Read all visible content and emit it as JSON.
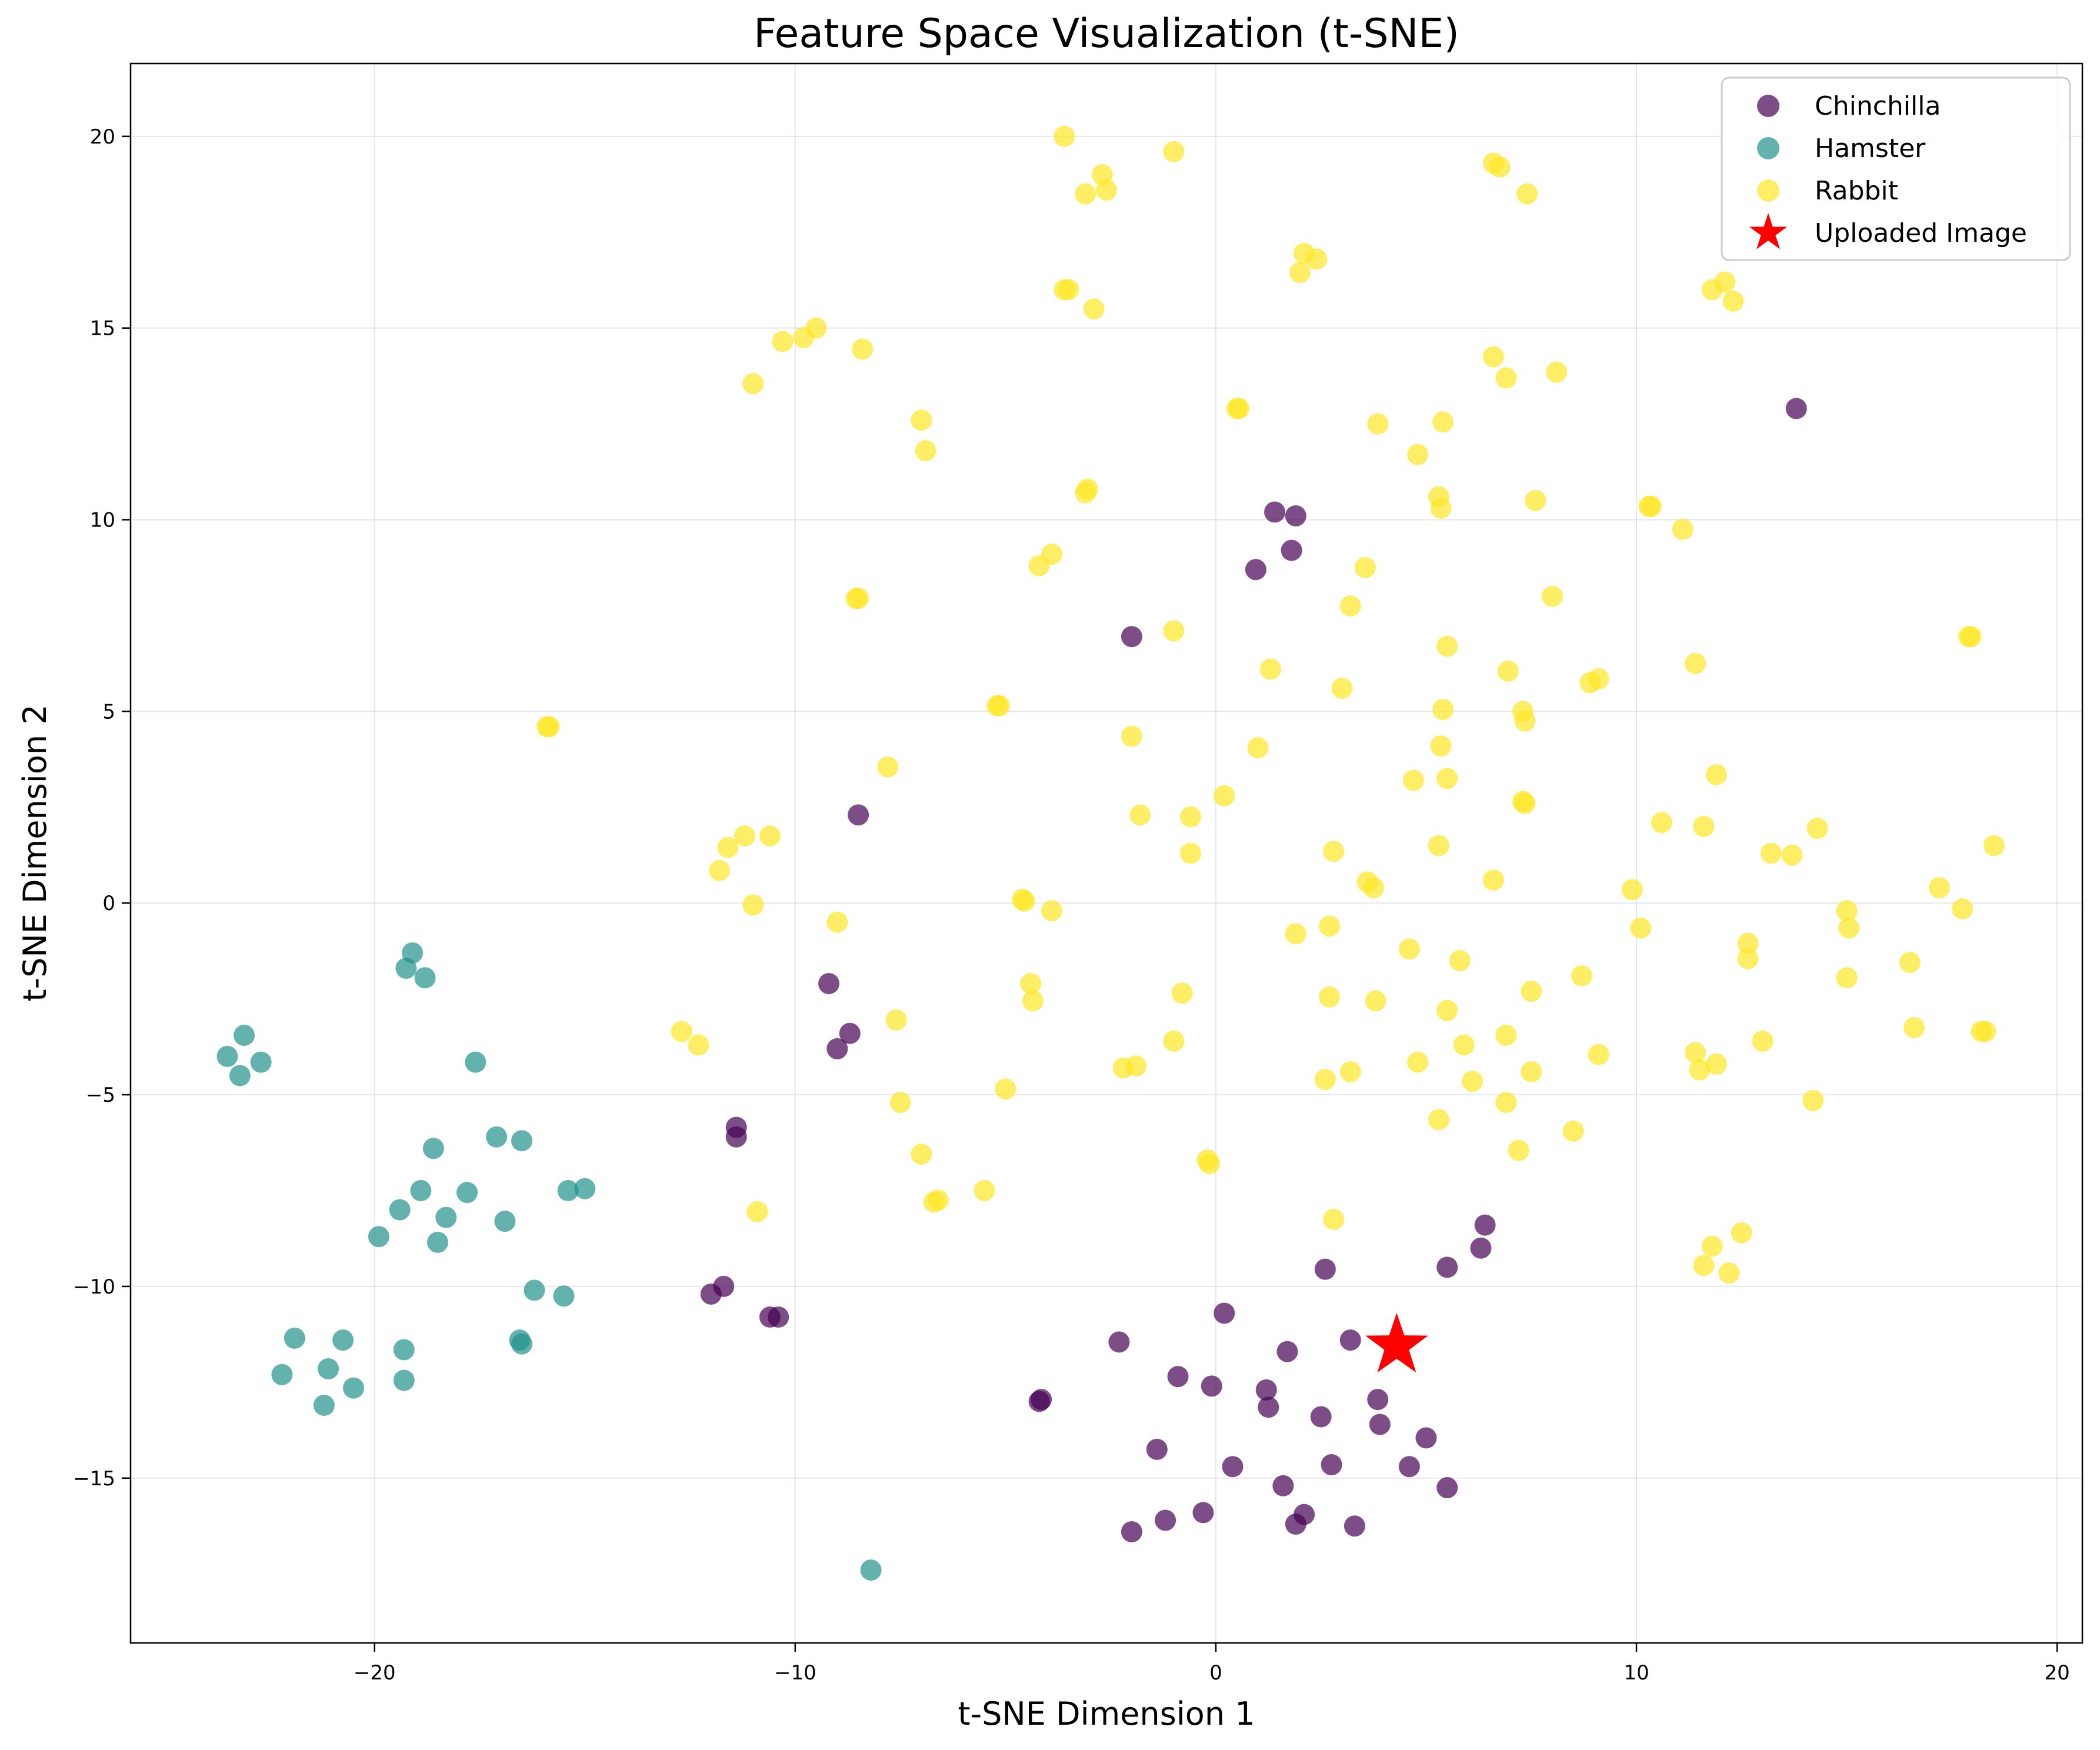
{
  "chart_data": {
    "type": "scatter",
    "title": "Feature Space Visualization (t-SNE)",
    "xlabel": "t-SNE Dimension 1",
    "ylabel": "t-SNE Dimension 2",
    "xlim": [
      -25.8,
      20.6
    ],
    "ylim": [
      -19.3,
      21.9
    ],
    "xticks": [
      -20,
      -10,
      0,
      10,
      20
    ],
    "yticks": [
      -15,
      -10,
      -5,
      0,
      5,
      10,
      15,
      20
    ],
    "xtick_labels": [
      "−20",
      "−10",
      "0",
      "10",
      "20"
    ],
    "ytick_labels": [
      "−15",
      "−10",
      "−5",
      "0",
      "5",
      "10",
      "15",
      "20"
    ],
    "grid": true,
    "legend_position": "top-right",
    "series": [
      {
        "name": "Chinchilla",
        "color": "#440154",
        "marker": "circle",
        "points": [
          [
            13.8,
            12.9
          ],
          [
            1.4,
            10.2
          ],
          [
            1.9,
            10.1
          ],
          [
            1.8,
            9.2
          ],
          [
            0.95,
            8.7
          ],
          [
            -2.0,
            6.95
          ],
          [
            -8.5,
            2.3
          ],
          [
            -9.2,
            -2.1
          ],
          [
            -8.7,
            -3.4
          ],
          [
            -9.0,
            -3.8
          ],
          [
            -11.4,
            -5.85
          ],
          [
            -11.4,
            -6.1
          ],
          [
            -12.0,
            -10.2
          ],
          [
            -11.7,
            -10.0
          ],
          [
            -10.6,
            -10.8
          ],
          [
            -10.4,
            -10.8
          ],
          [
            -4.2,
            -13.0
          ],
          [
            -4.15,
            -12.95
          ],
          [
            2.6,
            -9.55
          ],
          [
            6.4,
            -8.4
          ],
          [
            6.3,
            -9.0
          ],
          [
            5.5,
            -9.5
          ],
          [
            0.2,
            -10.7
          ],
          [
            3.2,
            -11.4
          ],
          [
            -2.3,
            -11.45
          ],
          [
            1.7,
            -11.7
          ],
          [
            -0.9,
            -12.35
          ],
          [
            -0.1,
            -12.6
          ],
          [
            1.2,
            -12.7
          ],
          [
            1.25,
            -13.15
          ],
          [
            3.85,
            -12.95
          ],
          [
            2.5,
            -13.4
          ],
          [
            3.9,
            -13.6
          ],
          [
            5.0,
            -13.95
          ],
          [
            -1.4,
            -14.25
          ],
          [
            0.4,
            -14.7
          ],
          [
            2.75,
            -14.65
          ],
          [
            4.6,
            -14.7
          ],
          [
            1.6,
            -15.2
          ],
          [
            5.5,
            -15.25
          ],
          [
            -0.3,
            -15.9
          ],
          [
            -1.2,
            -16.1
          ],
          [
            2.1,
            -15.95
          ],
          [
            1.9,
            -16.2
          ],
          [
            3.3,
            -16.25
          ],
          [
            -2.0,
            -16.4
          ]
        ]
      },
      {
        "name": "Hamster",
        "color": "#21918c",
        "marker": "circle",
        "points": [
          [
            -19.1,
            -1.3
          ],
          [
            -19.25,
            -1.7
          ],
          [
            -18.8,
            -1.95
          ],
          [
            -17.6,
            -4.15
          ],
          [
            -23.1,
            -3.45
          ],
          [
            -23.5,
            -4.0
          ],
          [
            -22.7,
            -4.15
          ],
          [
            -23.2,
            -4.5
          ],
          [
            -17.1,
            -6.1
          ],
          [
            -16.5,
            -6.2
          ],
          [
            -18.6,
            -6.4
          ],
          [
            -18.9,
            -7.5
          ],
          [
            -17.8,
            -7.55
          ],
          [
            -19.4,
            -8.0
          ],
          [
            -18.3,
            -8.2
          ],
          [
            -16.9,
            -8.3
          ],
          [
            -15.4,
            -7.5
          ],
          [
            -15.0,
            -7.45
          ],
          [
            -18.5,
            -8.85
          ],
          [
            -19.9,
            -8.7
          ],
          [
            -16.2,
            -10.1
          ],
          [
            -15.5,
            -10.25
          ],
          [
            -21.9,
            -11.35
          ],
          [
            -20.75,
            -11.4
          ],
          [
            -19.3,
            -11.65
          ],
          [
            -16.55,
            -11.4
          ],
          [
            -16.5,
            -11.5
          ],
          [
            -22.2,
            -12.3
          ],
          [
            -21.1,
            -12.15
          ],
          [
            -19.3,
            -12.45
          ],
          [
            -20.5,
            -12.65
          ],
          [
            -21.2,
            -13.1
          ],
          [
            -8.2,
            -17.4
          ]
        ]
      },
      {
        "name": "Rabbit",
        "color": "#fde725",
        "marker": "circle",
        "points": [
          [
            -3.6,
            20.0
          ],
          [
            -1.0,
            19.6
          ],
          [
            -2.7,
            19.0
          ],
          [
            -3.1,
            18.5
          ],
          [
            -2.6,
            18.6
          ],
          [
            6.6,
            19.3
          ],
          [
            6.75,
            19.2
          ],
          [
            7.4,
            18.5
          ],
          [
            2.1,
            16.95
          ],
          [
            2.4,
            16.8
          ],
          [
            2.0,
            16.45
          ],
          [
            11.8,
            16.0
          ],
          [
            12.1,
            16.2
          ],
          [
            12.3,
            15.7
          ],
          [
            -3.6,
            16.0
          ],
          [
            -3.5,
            16.0
          ],
          [
            -2.9,
            15.5
          ],
          [
            -9.5,
            15.0
          ],
          [
            -9.8,
            14.75
          ],
          [
            -10.3,
            14.65
          ],
          [
            -8.4,
            14.45
          ],
          [
            -11.0,
            13.55
          ],
          [
            6.6,
            14.25
          ],
          [
            6.9,
            13.7
          ],
          [
            8.1,
            13.85
          ],
          [
            0.5,
            12.9
          ],
          [
            0.55,
            12.9
          ],
          [
            -7.0,
            12.6
          ],
          [
            -6.9,
            11.8
          ],
          [
            3.85,
            12.5
          ],
          [
            5.4,
            12.55
          ],
          [
            4.8,
            11.7
          ],
          [
            -3.1,
            10.7
          ],
          [
            -3.05,
            10.8
          ],
          [
            5.3,
            10.6
          ],
          [
            5.35,
            10.3
          ],
          [
            7.6,
            10.5
          ],
          [
            10.3,
            10.35
          ],
          [
            10.35,
            10.35
          ],
          [
            11.1,
            9.75
          ],
          [
            -4.2,
            8.8
          ],
          [
            -3.9,
            9.1
          ],
          [
            3.55,
            8.75
          ],
          [
            -8.55,
            7.95
          ],
          [
            -8.5,
            7.95
          ],
          [
            3.2,
            7.75
          ],
          [
            8.0,
            8.0
          ],
          [
            -1.0,
            7.1
          ],
          [
            17.9,
            6.95
          ],
          [
            17.95,
            6.95
          ],
          [
            1.3,
            6.1
          ],
          [
            5.5,
            6.7
          ],
          [
            6.95,
            6.05
          ],
          [
            11.4,
            6.25
          ],
          [
            3.0,
            5.6
          ],
          [
            8.9,
            5.75
          ],
          [
            9.1,
            5.85
          ],
          [
            -5.2,
            5.15
          ],
          [
            -5.15,
            5.15
          ],
          [
            5.4,
            5.05
          ],
          [
            7.3,
            5.0
          ],
          [
            7.35,
            4.75
          ],
          [
            -15.9,
            4.6
          ],
          [
            -15.85,
            4.6
          ],
          [
            -2.0,
            4.35
          ],
          [
            1.0,
            4.05
          ],
          [
            5.35,
            4.1
          ],
          [
            -7.8,
            3.55
          ],
          [
            4.7,
            3.2
          ],
          [
            5.5,
            3.25
          ],
          [
            11.9,
            3.35
          ],
          [
            0.2,
            2.8
          ],
          [
            7.3,
            2.65
          ],
          [
            7.35,
            2.6
          ],
          [
            -1.8,
            2.3
          ],
          [
            -0.6,
            2.25
          ],
          [
            10.6,
            2.1
          ],
          [
            11.6,
            2.0
          ],
          [
            14.3,
            1.95
          ],
          [
            -11.2,
            1.75
          ],
          [
            -10.6,
            1.75
          ],
          [
            -11.6,
            1.45
          ],
          [
            5.3,
            1.5
          ],
          [
            2.8,
            1.35
          ],
          [
            -0.6,
            1.3
          ],
          [
            13.2,
            1.3
          ],
          [
            13.7,
            1.25
          ],
          [
            18.5,
            1.5
          ],
          [
            -11.8,
            0.85
          ],
          [
            3.6,
            0.55
          ],
          [
            3.75,
            0.4
          ],
          [
            6.6,
            0.6
          ],
          [
            9.9,
            0.35
          ],
          [
            17.2,
            0.4
          ],
          [
            -11.0,
            -0.05
          ],
          [
            -4.6,
            0.1
          ],
          [
            -4.55,
            0.05
          ],
          [
            -3.9,
            -0.2
          ],
          [
            15.0,
            -0.2
          ],
          [
            17.75,
            -0.15
          ],
          [
            -9.0,
            -0.5
          ],
          [
            2.7,
            -0.6
          ],
          [
            10.1,
            -0.65
          ],
          [
            15.05,
            -0.65
          ],
          [
            1.9,
            -0.8
          ],
          [
            12.65,
            -1.05
          ],
          [
            4.6,
            -1.2
          ],
          [
            5.8,
            -1.5
          ],
          [
            12.65,
            -1.45
          ],
          [
            16.5,
            -1.55
          ],
          [
            8.7,
            -1.9
          ],
          [
            15.0,
            -1.95
          ],
          [
            -4.4,
            -2.1
          ],
          [
            -0.8,
            -2.35
          ],
          [
            7.5,
            -2.3
          ],
          [
            -4.35,
            -2.55
          ],
          [
            2.7,
            -2.45
          ],
          [
            3.8,
            -2.55
          ],
          [
            5.5,
            -2.8
          ],
          [
            -7.6,
            -3.05
          ],
          [
            16.6,
            -3.25
          ],
          [
            18.2,
            -3.35
          ],
          [
            18.3,
            -3.35
          ],
          [
            -12.7,
            -3.35
          ],
          [
            -12.3,
            -3.7
          ],
          [
            -1.0,
            -3.6
          ],
          [
            5.9,
            -3.7
          ],
          [
            6.9,
            -3.45
          ],
          [
            13.0,
            -3.6
          ],
          [
            11.4,
            -3.9
          ],
          [
            9.1,
            -3.95
          ],
          [
            -2.2,
            -4.3
          ],
          [
            -1.9,
            -4.25
          ],
          [
            3.2,
            -4.4
          ],
          [
            4.8,
            -4.15
          ],
          [
            11.5,
            -4.35
          ],
          [
            11.9,
            -4.2
          ],
          [
            2.6,
            -4.6
          ],
          [
            6.1,
            -4.65
          ],
          [
            7.5,
            -4.4
          ],
          [
            -5.0,
            -4.85
          ],
          [
            -7.5,
            -5.2
          ],
          [
            6.9,
            -5.2
          ],
          [
            14.2,
            -5.15
          ],
          [
            5.3,
            -5.65
          ],
          [
            8.5,
            -5.95
          ],
          [
            -0.2,
            -6.7
          ],
          [
            -0.15,
            -6.8
          ],
          [
            -7.0,
            -6.55
          ],
          [
            7.2,
            -6.45
          ],
          [
            -5.5,
            -7.5
          ],
          [
            -6.7,
            -7.8
          ],
          [
            -6.6,
            -7.75
          ],
          [
            -10.9,
            -8.05
          ],
          [
            2.8,
            -8.25
          ],
          [
            12.5,
            -8.6
          ],
          [
            11.8,
            -8.95
          ],
          [
            11.6,
            -9.45
          ],
          [
            12.2,
            -9.65
          ]
        ]
      },
      {
        "name": "Uploaded Image",
        "color": "#ff0000",
        "marker": "star",
        "points": [
          [
            4.3,
            -11.55
          ]
        ]
      }
    ]
  }
}
